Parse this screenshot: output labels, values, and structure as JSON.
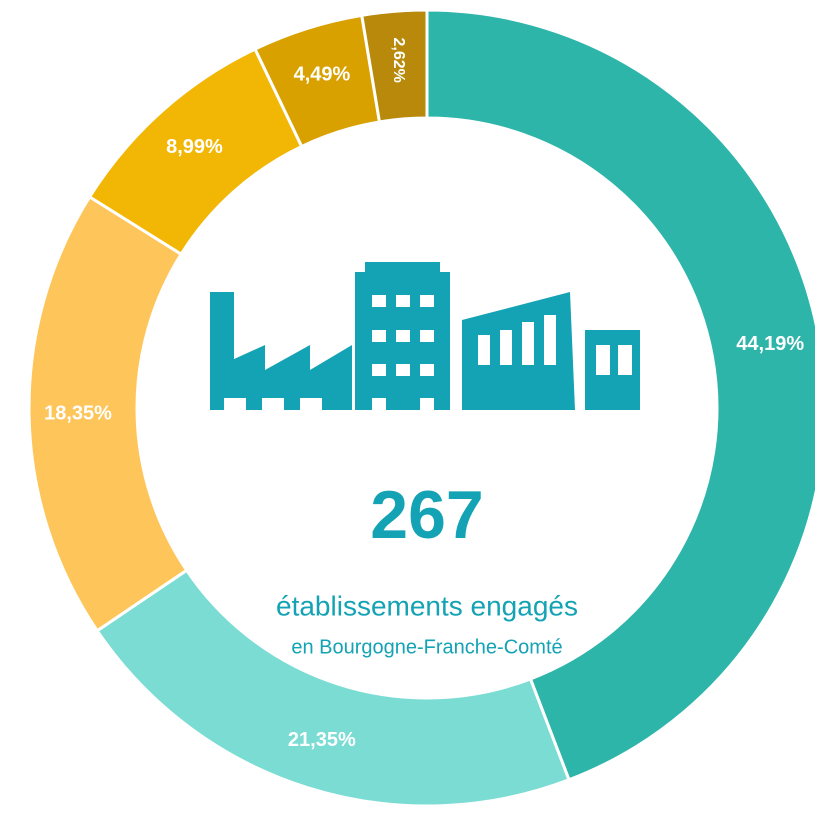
{
  "chart_data": {
    "type": "donut",
    "categories": [
      null,
      null,
      null,
      null,
      null,
      null
    ],
    "values": [
      44.19,
      21.35,
      18.35,
      8.99,
      4.49,
      2.62
    ],
    "value_labels": [
      "44,19%",
      "21,35%",
      "18,35%",
      "8,99%",
      "4,49%",
      "2,62%"
    ],
    "colors": [
      "#2db5aa",
      "#7bdcd4",
      "#fdc55a",
      "#f2b705",
      "#d9a100",
      "#b8890a"
    ],
    "annotations": [
      "267",
      "établissements engagés",
      "en Bourgogne-Franche-Comté"
    ]
  }
}
